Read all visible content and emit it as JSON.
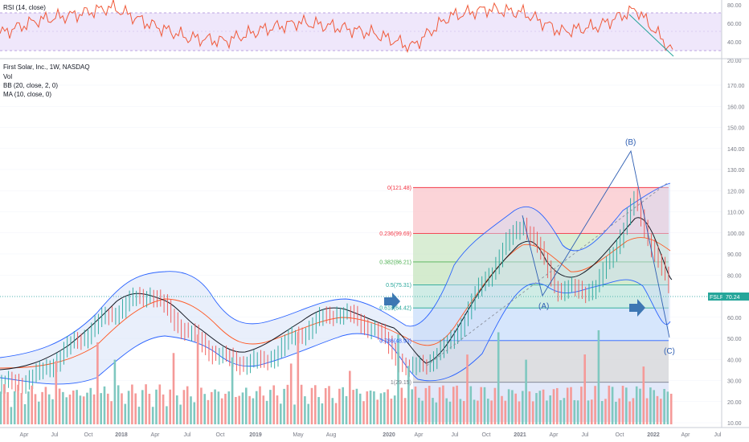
{
  "rsi_panel": {
    "title": "RSI (14, close)",
    "yticks": [
      "80.00",
      "60.00",
      "40.00",
      "20.00"
    ]
  },
  "main_panel": {
    "title": "First Solar, Inc., 1W, NASDAQ",
    "indicators": [
      "Vol",
      "BB (20, close, 2, 0)",
      "MA (10, close, 0)"
    ],
    "yticks": [
      "170.00",
      "160.00",
      "150.00",
      "140.00",
      "130.00",
      "120.00",
      "110.00",
      "100.00",
      "90.00",
      "80.00",
      "70.00",
      "60.00",
      "50.00",
      "40.00",
      "30.00",
      "20.00",
      "10.00"
    ],
    "price_badge": {
      "symbol": "FSLR",
      "value": "70.24"
    },
    "wave_labels": [
      "(B)",
      "(A)",
      "(C)"
    ],
    "fib_levels": [
      {
        "label": "0(121.48)",
        "value": 121.48,
        "color": "#f23645"
      },
      {
        "label": "0.236(99.69)",
        "value": 99.69,
        "color": "#f23645"
      },
      {
        "label": "0.382(86.21)",
        "value": 86.21,
        "color": "#4caf50"
      },
      {
        "label": "0.5(75.31)",
        "value": 75.31,
        "color": "#26a69a"
      },
      {
        "label": "0.618(64.42)",
        "value": 64.42,
        "color": "#26a69a"
      },
      {
        "label": "0.786(48.93)",
        "value": 48.93,
        "color": "#2962ff"
      },
      {
        "label": "1(29.15)",
        "value": 29.15,
        "color": "#787b86"
      }
    ]
  },
  "time_axis": [
    "Apr",
    "Jul",
    "Oct",
    "2018",
    "Apr",
    "Jul",
    "Oct",
    "2019",
    "May",
    "Aug",
    "2020",
    "Apr",
    "Jul",
    "Oct",
    "2021",
    "Apr",
    "Jul",
    "Oct",
    "2022",
    "Apr",
    "Jul"
  ],
  "colors": {
    "price_up": "#26a69a",
    "price_down": "#ef5350",
    "ma": "#131722",
    "bb": "#2962ff",
    "bb_basis": "#ff5722",
    "rsi_line": "#f05a3a",
    "rsi_band": "#7e57c2",
    "arrows": "#3d77b3"
  },
  "chart_data": [
    {
      "type": "line",
      "title": "RSI (14, close)",
      "ylim": [
        20,
        85
      ],
      "x": [
        "Apr",
        "Jul",
        "Oct",
        "2018",
        "Apr",
        "Jul",
        "Oct",
        "2019",
        "May",
        "Aug",
        "2020",
        "Apr",
        "Jul",
        "Oct",
        "2021",
        "Apr",
        "Jul",
        "Oct",
        "2022"
      ],
      "series": [
        {
          "values": [
            48,
            62,
            68,
            76,
            58,
            44,
            40,
            52,
            60,
            55,
            48,
            34,
            66,
            74,
            70,
            50,
            56,
            74,
            28
          ]
        }
      ]
    },
    {
      "type": "line",
      "title": "First Solar, Inc., 1W, NASDAQ",
      "ylim": [
        8,
        180
      ],
      "x": [
        "Apr",
        "Jul",
        "Oct",
        "2018",
        "Apr",
        "Jul",
        "Oct",
        "2019",
        "May",
        "Aug",
        "2020",
        "Apr",
        "Jul",
        "Oct",
        "2021",
        "Apr",
        "Jul",
        "Oct",
        "2022"
      ],
      "series": [
        {
          "values": [
            27,
            32,
            48,
            62,
            72,
            53,
            40,
            38,
            52,
            63,
            55,
            34,
            46,
            78,
            106,
            72,
            74,
            115,
            70
          ]
        }
      ]
    }
  ]
}
